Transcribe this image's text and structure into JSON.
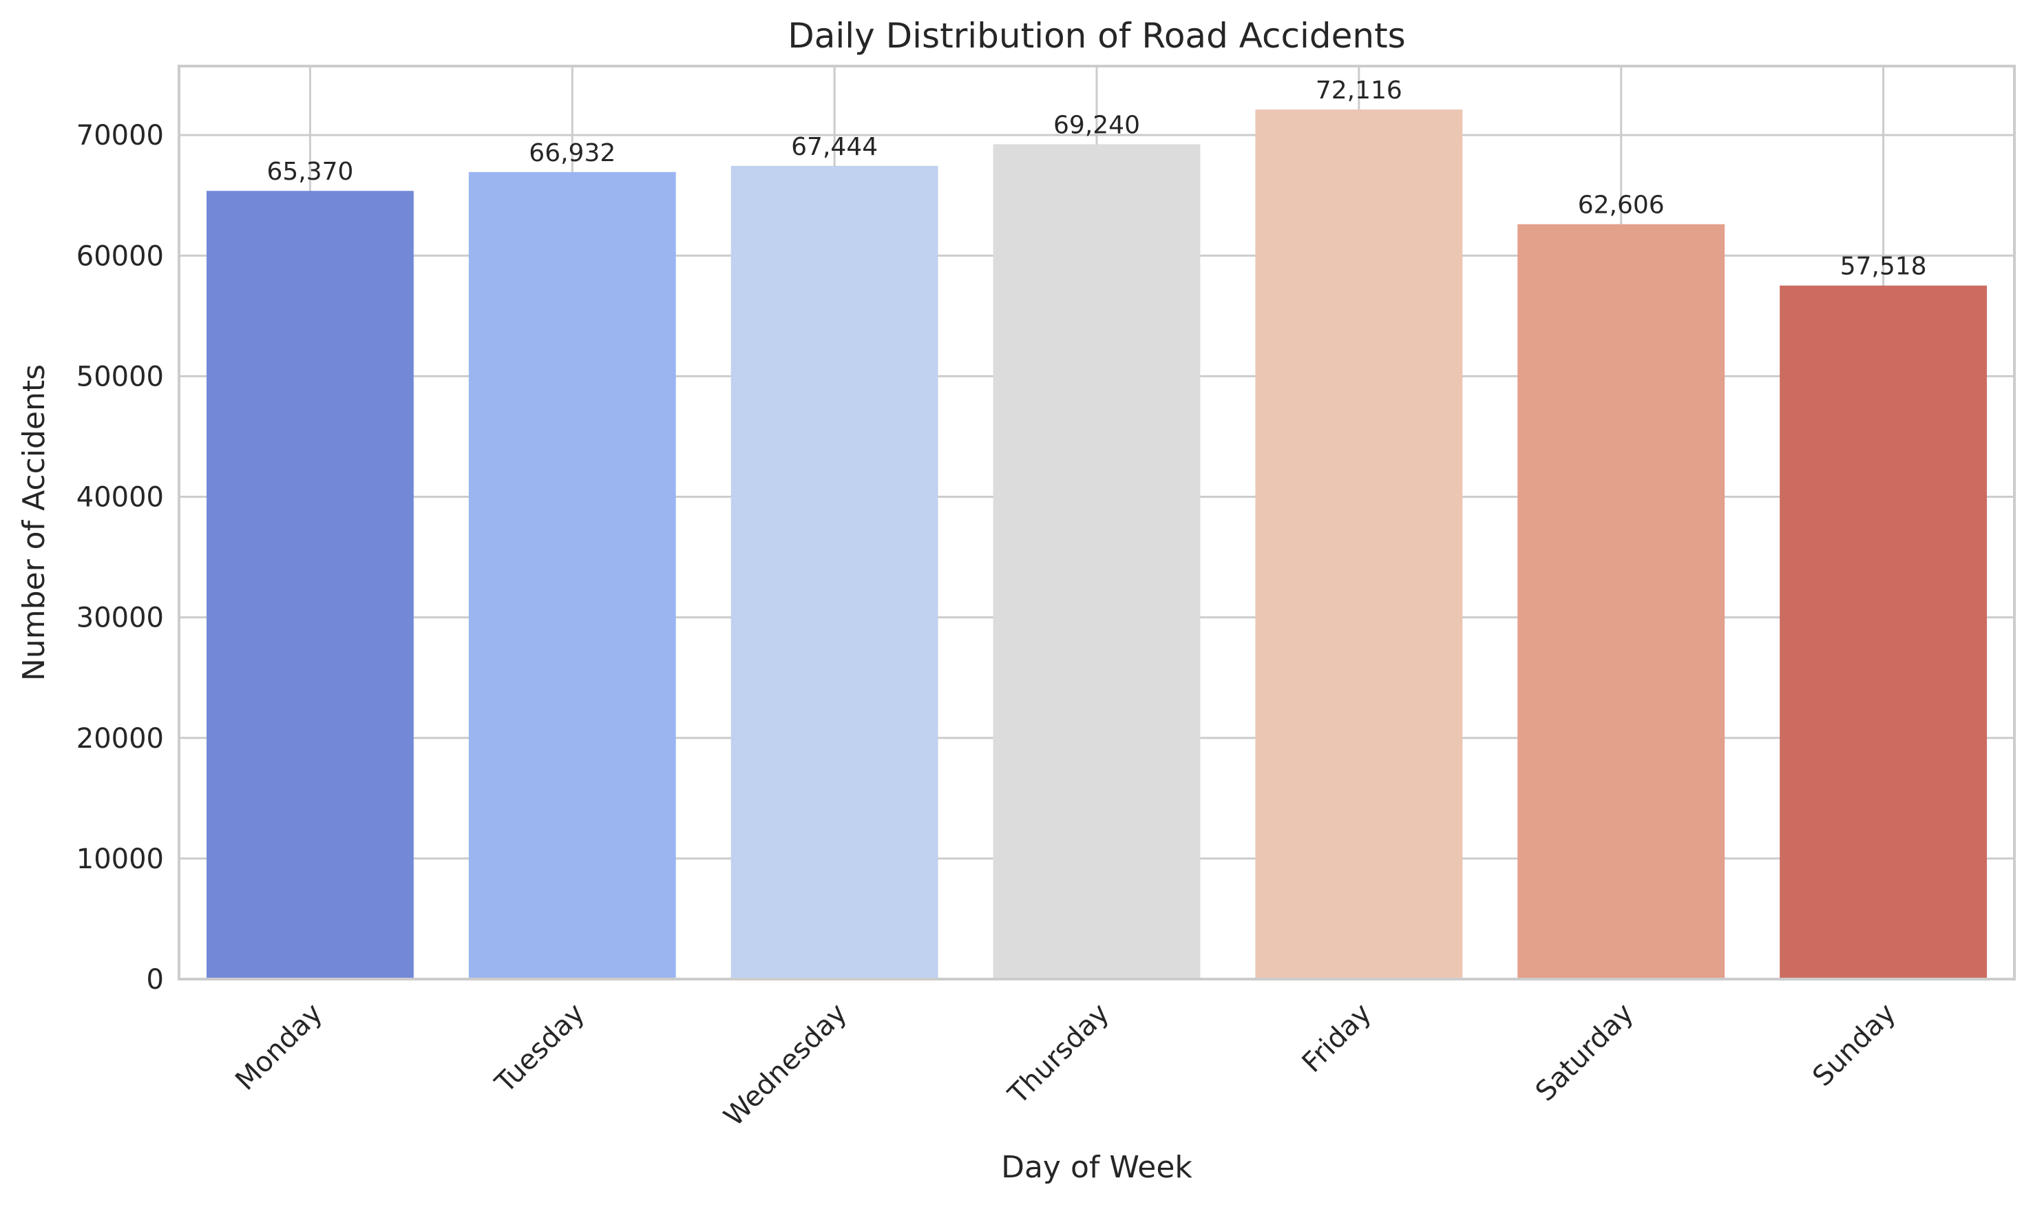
{
  "chart_data": {
    "type": "bar",
    "title": "Daily Distribution of Road Accidents",
    "xlabel": "Day of Week",
    "ylabel": "Number of Accidents",
    "categories": [
      "Monday",
      "Tuesday",
      "Wednesday",
      "Thursday",
      "Friday",
      "Saturday",
      "Sunday"
    ],
    "values": [
      65370,
      66932,
      67444,
      69240,
      72116,
      62606,
      57518
    ],
    "value_labels": [
      "65,370",
      "66,932",
      "67,444",
      "69,240",
      "72,116",
      "62,606",
      "57,518"
    ],
    "colors": [
      "#7389d8",
      "#9bb5f0",
      "#c1d1f0",
      "#dcdcdc",
      "#ebc6b3",
      "#e3a08a",
      "#cc6c60"
    ],
    "yticks": [
      0,
      10000,
      20000,
      30000,
      40000,
      50000,
      60000,
      70000
    ],
    "ylim": [
      0,
      75718
    ],
    "grid": true,
    "legend": "none"
  }
}
